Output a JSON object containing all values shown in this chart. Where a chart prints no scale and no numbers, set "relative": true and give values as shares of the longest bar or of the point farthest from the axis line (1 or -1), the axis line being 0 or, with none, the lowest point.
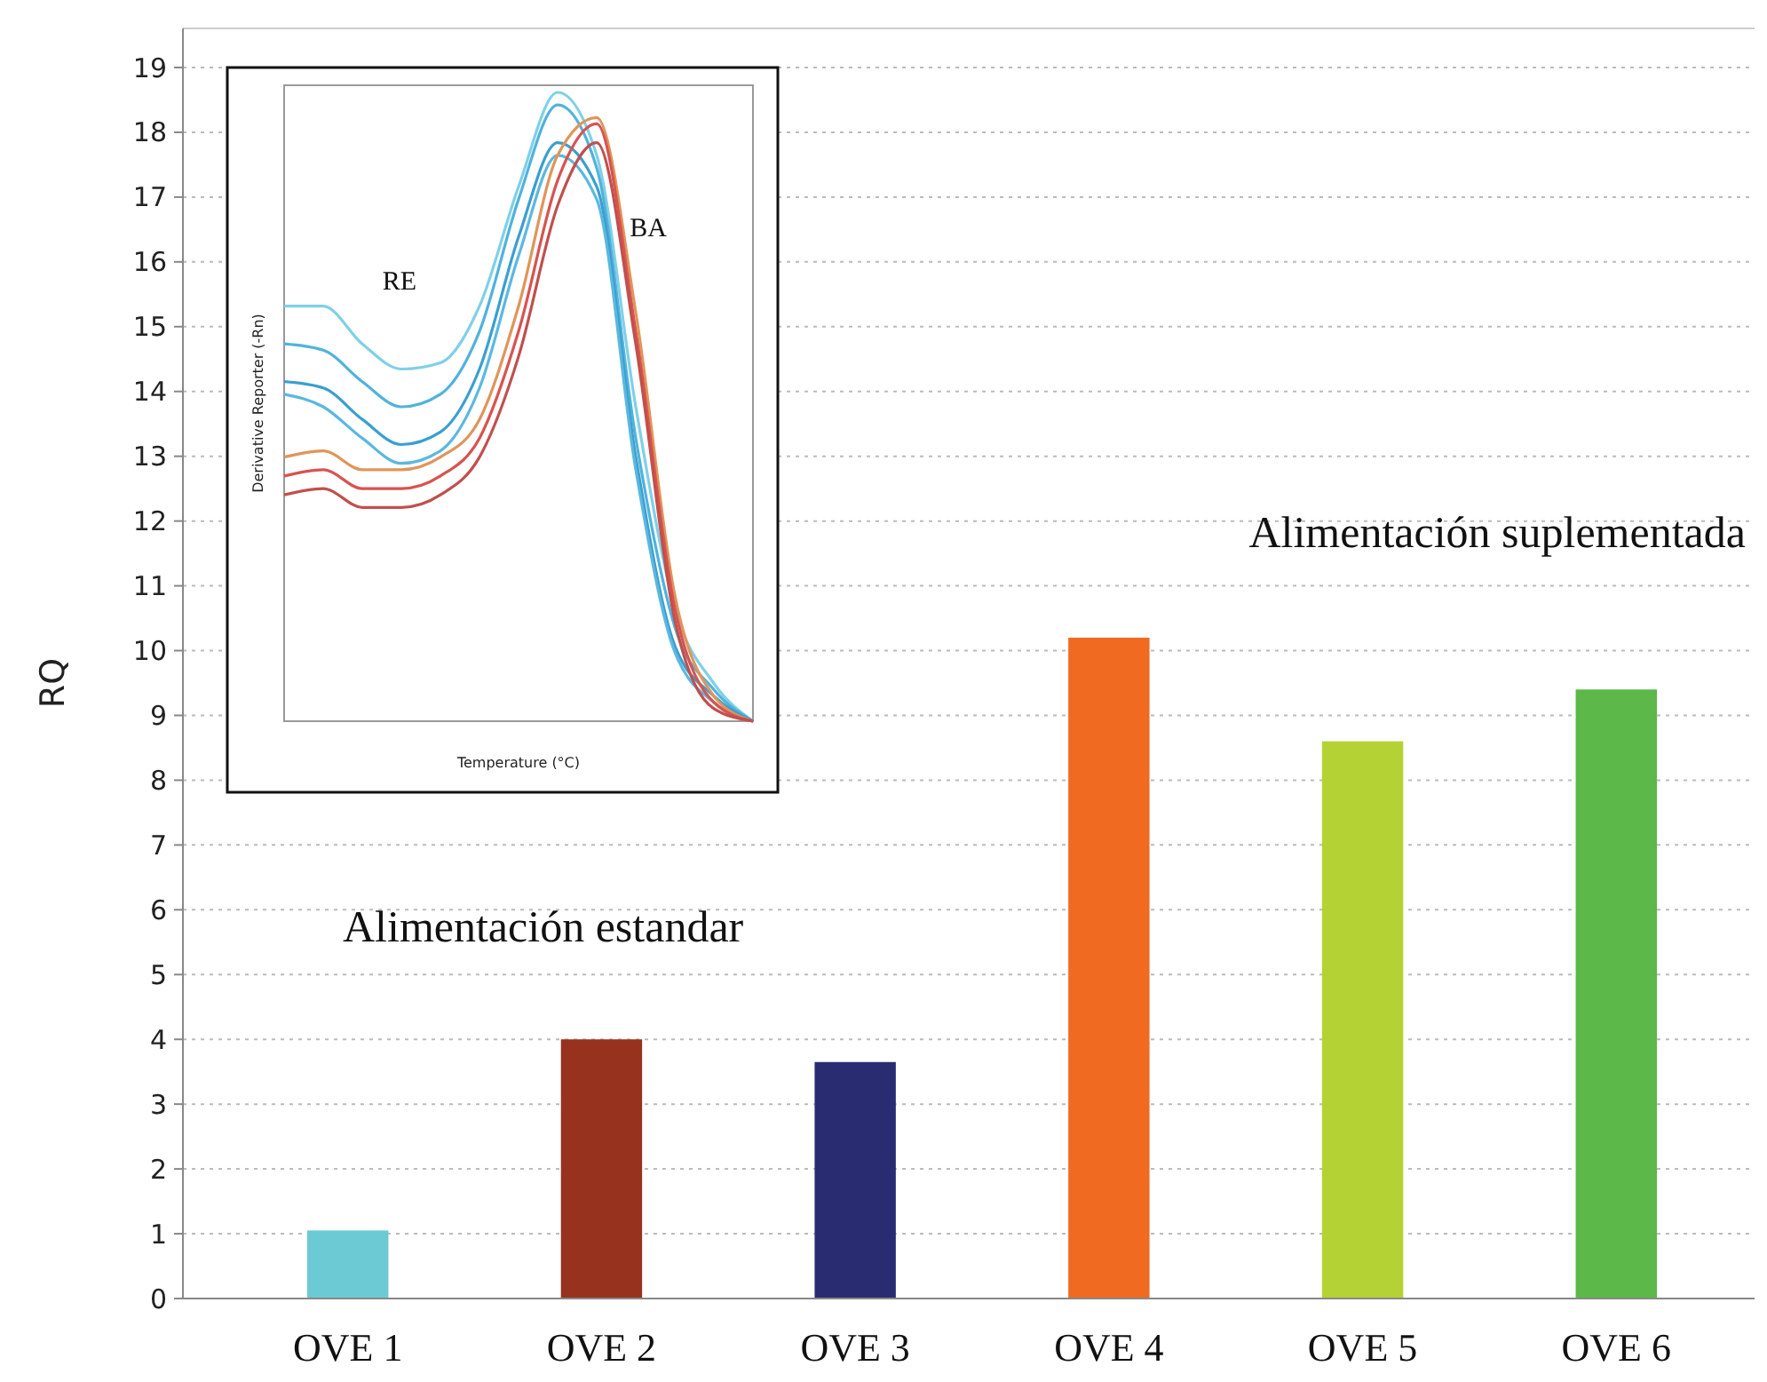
{
  "chart_data": [
    {
      "type": "bar",
      "ylabel": "RQ",
      "categories": [
        "OVE 1",
        "OVE 2",
        "OVE 3",
        "OVE 4",
        "OVE 5",
        "OVE 6"
      ],
      "values": [
        1.05,
        4.0,
        3.65,
        10.2,
        8.6,
        9.4
      ],
      "colors": [
        "#6ccad4",
        "#96321e",
        "#2a2c72",
        "#f06a22",
        "#b5d234",
        "#5cb848"
      ],
      "ylim": [
        0,
        19
      ],
      "yticks": [
        0,
        1,
        2,
        3,
        4,
        5,
        6,
        7,
        8,
        9,
        10,
        11,
        12,
        13,
        14,
        15,
        16,
        17,
        18,
        19
      ],
      "grid": "y",
      "annotations": [
        "Alimentación estandar",
        "Alimentación suplementada"
      ]
    },
    {
      "type": "line",
      "relative": true,
      "xlabel": "Temperature (°C)",
      "ylabel": "Derivative Reporter (-Rn)",
      "categories": [
        null,
        null,
        null,
        null,
        null,
        null,
        null,
        null,
        null,
        null,
        null,
        null,
        null
      ],
      "annotations": [
        "RE",
        "BA"
      ],
      "series": [
        {
          "color": "#7fd0e8",
          "values": [
            0.66,
            0.66,
            0.6,
            0.56,
            0.57,
            0.66,
            0.85,
            1.0,
            0.9,
            0.5,
            0.18,
            0.06,
            0.0
          ]
        },
        {
          "color": "#4fb3dc",
          "values": [
            0.6,
            0.59,
            0.54,
            0.5,
            0.52,
            0.62,
            0.83,
            0.98,
            0.88,
            0.45,
            0.15,
            0.05,
            0.0
          ]
        },
        {
          "color": "#3a9fd0",
          "values": [
            0.54,
            0.53,
            0.48,
            0.44,
            0.46,
            0.56,
            0.77,
            0.92,
            0.85,
            0.42,
            0.12,
            0.04,
            0.0
          ]
        },
        {
          "color": "#5bb8e0",
          "values": [
            0.52,
            0.5,
            0.45,
            0.41,
            0.43,
            0.53,
            0.74,
            0.9,
            0.83,
            0.4,
            0.11,
            0.03,
            0.0
          ]
        },
        {
          "color": "#e0955a",
          "values": [
            0.42,
            0.43,
            0.4,
            0.4,
            0.42,
            0.48,
            0.66,
            0.9,
            0.96,
            0.65,
            0.2,
            0.04,
            0.0
          ]
        },
        {
          "color": "#d9534f",
          "values": [
            0.39,
            0.4,
            0.37,
            0.37,
            0.39,
            0.45,
            0.62,
            0.86,
            0.95,
            0.62,
            0.18,
            0.03,
            0.0
          ]
        },
        {
          "color": "#c0504d",
          "values": [
            0.36,
            0.37,
            0.34,
            0.34,
            0.36,
            0.42,
            0.58,
            0.82,
            0.92,
            0.6,
            0.16,
            0.02,
            0.0
          ]
        }
      ]
    }
  ]
}
